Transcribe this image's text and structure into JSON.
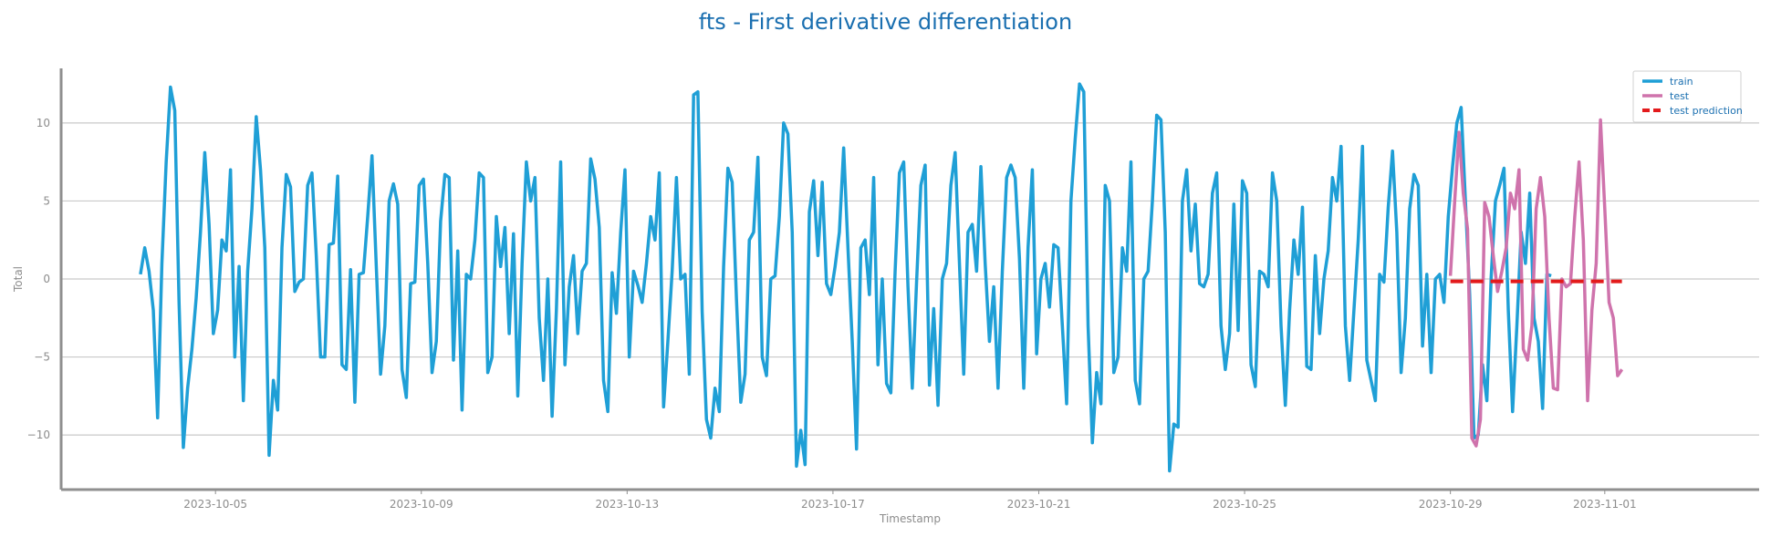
{
  "chart_data": {
    "type": "line",
    "title": "fts - First derivative differentiation",
    "xlabel": "Timestamp",
    "ylabel": "Total",
    "xlim": [
      "2023-10-02 00:00",
      "2023-11-04 00:00"
    ],
    "ylim": [
      -13.5,
      13.5
    ],
    "x_ticks": [
      "2023-10-05",
      "2023-10-09",
      "2023-10-13",
      "2023-10-17",
      "2023-10-21",
      "2023-10-25",
      "2023-10-29",
      "2023-11-01"
    ],
    "y_ticks": [
      -10,
      -5,
      0,
      5,
      10
    ],
    "grid": "horizontal",
    "legend_position": "top-right",
    "series": [
      {
        "name": "train",
        "color": "#1f9fd6",
        "x_start": "2023-10-03 13:00",
        "step_hours": 2,
        "values": [
          0.3,
          2.0,
          0.5,
          -2.0,
          -8.9,
          1.0,
          7.5,
          12.3,
          10.8,
          -1.5,
          -10.8,
          -7.0,
          -4.5,
          -1.2,
          3.0,
          8.1,
          3.5,
          -3.5,
          -2.0,
          2.5,
          1.8,
          7.0,
          -5.0,
          0.8,
          -7.8,
          0.5,
          4.5,
          10.4,
          7.0,
          2.0,
          -11.3,
          -6.5,
          -8.4,
          2.0,
          6.7,
          5.9,
          -0.8,
          -0.2,
          0.0,
          6.0,
          6.8,
          1.5,
          -5.0,
          -5.0,
          2.2,
          2.3,
          6.6,
          -5.5,
          -5.8,
          0.6,
          -7.9,
          0.3,
          0.4,
          4.0,
          7.9,
          0.8,
          -6.1,
          -3.0,
          5.0,
          6.1,
          4.8,
          -5.8,
          -7.6,
          -0.3,
          -0.2,
          6.0,
          6.4,
          1.0,
          -6.0,
          -4.0,
          3.7,
          6.7,
          6.5,
          -5.2,
          1.8,
          -8.4,
          0.3,
          0.0,
          2.5,
          6.8,
          6.5,
          -6.0,
          -5.0,
          4.0,
          0.8,
          3.3,
          -3.5,
          2.9,
          -7.5,
          1.0,
          7.5,
          5.0,
          6.5,
          -2.5,
          -6.5,
          0.0,
          -8.8,
          -2.0,
          7.5,
          -5.5,
          -0.5,
          1.5,
          -3.5,
          0.5,
          1.0,
          7.7,
          6.4,
          3.3,
          -6.5,
          -8.5,
          0.4,
          -2.2,
          3.0,
          7.0,
          -5.0,
          0.5,
          -0.4,
          -1.5,
          1.0,
          4.0,
          2.5,
          6.8,
          -8.2,
          -4.0,
          0.5,
          6.5,
          0.0,
          0.3,
          -6.1,
          11.8,
          12.0,
          -2.1,
          -9.0,
          -10.2,
          -7.0,
          -8.5,
          0.8,
          7.1,
          6.2,
          -1.3,
          -7.9,
          -6.1,
          2.5,
          3.0,
          7.8,
          -5.0,
          -6.2,
          0.0,
          0.2,
          4.0,
          10.0,
          9.3,
          3.0,
          -12.0,
          -9.7,
          -11.9,
          4.3,
          6.3,
          1.5,
          6.2,
          -0.3,
          -1.0,
          0.8,
          3.0,
          8.4,
          2.0,
          -4.0,
          -10.9,
          2.0,
          2.5,
          -1.0,
          6.5,
          -5.5,
          0.0,
          -6.7,
          -7.3,
          0.5,
          6.8,
          7.5,
          -0.5,
          -7.0,
          -0.2,
          6.0,
          7.3,
          -6.8,
          -1.9,
          -8.1,
          0.0,
          1.0,
          6.0,
          8.1,
          1.0,
          -6.1,
          3.0,
          3.5,
          0.5,
          7.2,
          1.0,
          -4.0,
          -0.5,
          -7.0,
          0.5,
          6.5,
          7.3,
          6.5,
          1.3,
          -7.0,
          2.0,
          7.0,
          -4.8,
          0.0,
          1.0,
          -1.8,
          2.2,
          2.0,
          -3.0,
          -8.0,
          5.0,
          9.0,
          12.5,
          12.0,
          -3.0,
          -10.5,
          -6.0,
          -8.0,
          6.0,
          5.0,
          -6.0,
          -5.0,
          2.0,
          0.5,
          7.5,
          -6.5,
          -8.0,
          0.0,
          0.5,
          5.0,
          10.5,
          10.2,
          3.0,
          -12.3,
          -9.3,
          -9.5,
          5.0,
          7.0,
          1.8,
          4.8,
          -0.3,
          -0.5,
          0.3,
          5.5,
          6.8,
          -3.0,
          -5.8,
          -3.5,
          4.8,
          -3.3,
          6.3,
          5.5,
          -5.5,
          -6.9,
          0.5,
          0.3,
          -0.5,
          6.8,
          5.0,
          -3.0,
          -8.1,
          -2.0,
          2.5,
          0.3,
          4.6,
          -5.6,
          -5.8,
          1.5,
          -3.5,
          0.0,
          1.8,
          6.5,
          5.0,
          8.5,
          -3.0,
          -6.5,
          -2.0,
          2.5,
          8.5,
          -5.2,
          -6.5,
          -7.8,
          0.3,
          -0.2,
          4.6,
          8.2,
          3.0,
          -6.0,
          -2.5,
          4.5,
          6.7,
          6.0,
          -4.3,
          0.3,
          -6.0,
          0.0,
          0.3,
          -1.5,
          4.0,
          7.2,
          10.0,
          11.0,
          5.0,
          -1.0,
          -10.2,
          -10.0,
          -5.5,
          -7.8,
          0.1,
          5.0,
          6.0,
          7.1,
          -2.0,
          -8.5,
          -3.0,
          3.0,
          1.0,
          5.5,
          -2.5,
          -4.0,
          -8.3,
          0.3,
          0.2
        ]
      },
      {
        "name": "test",
        "color": "#cf73ac",
        "x_start": "2023-10-29 00:00",
        "step_hours": 2,
        "values": [
          0.2,
          5.0,
          9.4,
          5.5,
          3.2,
          -10.2,
          -10.7,
          -9.0,
          4.9,
          4.0,
          1.5,
          -0.8,
          0.5,
          2.0,
          5.5,
          4.5,
          7.0,
          -4.5,
          -5.2,
          -3.0,
          4.5,
          6.5,
          4.0,
          -2.5,
          -7.0,
          -7.1,
          0.0,
          -0.5,
          -0.3,
          4.0,
          7.5,
          2.5,
          -7.8,
          -2.0,
          1.0,
          10.2,
          4.5,
          -1.5,
          -2.5,
          -6.2,
          -5.8
        ]
      },
      {
        "name": "test prediction",
        "color": "#e31a1c",
        "style": "dashed",
        "x": [
          "2023-10-29 00:00",
          "2023-11-01 08:00"
        ],
        "values": [
          -0.15,
          -0.15
        ]
      }
    ]
  }
}
